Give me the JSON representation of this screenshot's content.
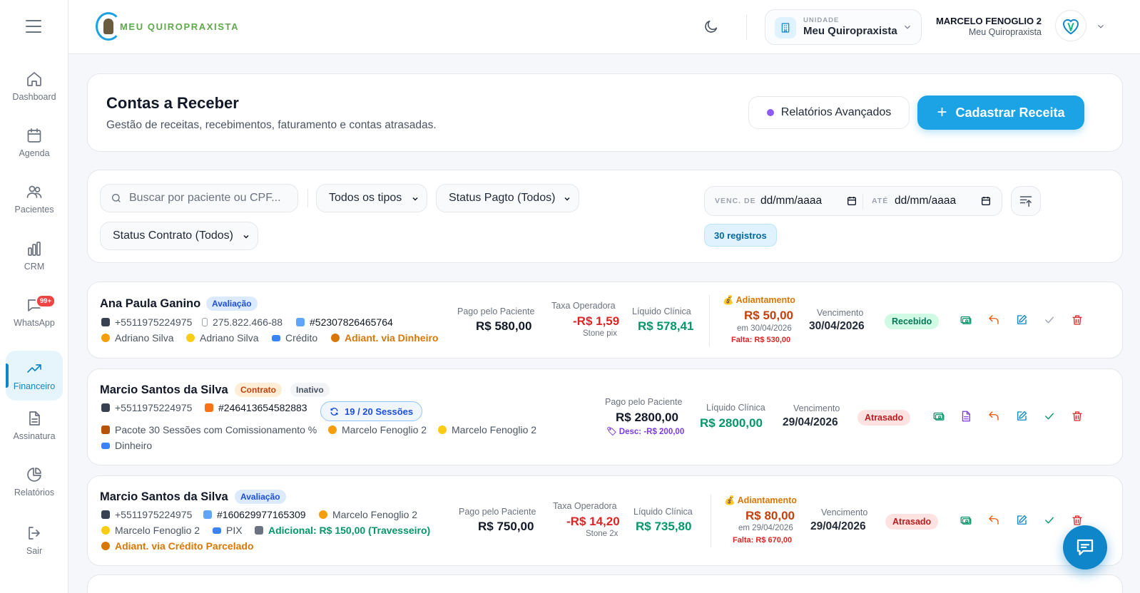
{
  "brand": {
    "name": "MEU QUIROPRAXISTA"
  },
  "sidebar": {
    "items": [
      {
        "label": "Dashboard",
        "icon": "home-icon"
      },
      {
        "label": "Agenda",
        "icon": "calendar-icon"
      },
      {
        "label": "Pacientes",
        "icon": "users-icon"
      },
      {
        "label": "CRM",
        "icon": "bar-chart-icon"
      },
      {
        "label": "WhatsApp",
        "icon": "chat-bubble-icon",
        "badge": "99+"
      },
      {
        "label": "Financeiro",
        "icon": "trending-up-icon",
        "active": true
      },
      {
        "label": "Assinatura",
        "icon": "document-icon"
      },
      {
        "label": "Relatórios",
        "icon": "pie-chart-icon"
      },
      {
        "label": "Sair",
        "icon": "logout-icon"
      }
    ]
  },
  "header": {
    "unit_label": "UNIDADE",
    "unit_name": "Meu Quiropraxista",
    "user_name": "MARCELO FENOGLIO 2",
    "user_org": "Meu Quiropraxista"
  },
  "page": {
    "title": "Contas a Receber",
    "subtitle": "Gestão de receitas, recebimentos, faturamento e contas atrasadas.",
    "reports_button": "Relatórios Avançados",
    "new_button": "Cadastrar Receita"
  },
  "filters": {
    "search_placeholder": "Buscar por paciente ou CPF...",
    "type_select": "Todos os tipos",
    "payment_status_select": "Status Pagto (Todos)",
    "contract_status_select": "Status Contrato (Todos)",
    "venc_de_label": "VENC. DE",
    "venc_de_value": "dd/mm/aaaa",
    "ate_label": "ATÉ",
    "ate_value": "dd/mm/aaaa",
    "records": "30 registros"
  },
  "rows": [
    {
      "name": "Ana Paula Ganino",
      "tag": "Avaliação",
      "phone": "+5511975224975",
      "cpf": "275.822.466-88",
      "code": "#52307826465764",
      "professional": "Adriano Silva",
      "seller": "Adriano Silva",
      "payment": "Crédito",
      "advance_via": "Adiant. via Dinheiro",
      "paid_label": "Pago pelo Paciente",
      "paid_value": "R$ 580,00",
      "fee_label": "Taxa Operadora",
      "fee_value": "-R$ 1,59",
      "fee_note": "Stone pix",
      "net_label": "Líquido Clínica",
      "net_value": "R$ 578,41",
      "advance_label": "Adiantamento",
      "advance_value": "R$ 50,00",
      "advance_date": "em 30/04/2026",
      "missing": "Falta: R$ 530,00",
      "due_label": "Vencimento",
      "due_value": "30/04/2026",
      "status": "Recebido"
    },
    {
      "name": "Marcio Santos da Silva",
      "tag": "Contrato",
      "tag2": "Inativo",
      "phone": "+5511975224975",
      "code": "#246413654582883",
      "sessions": "19 / 20 Sessões",
      "package": "Pacote 30 Sessões com Comissionamento %",
      "professional": "Marcelo Fenoglio 2",
      "seller": "Marcelo Fenoglio 2",
      "payment": "Dinheiro",
      "paid_label": "Pago pelo Paciente",
      "paid_value": "R$ 2800,00",
      "discount": "Desc: -R$ 200,00",
      "net_label": "Líquido Clínica",
      "net_value": "R$ 2800,00",
      "due_label": "Vencimento",
      "due_value": "29/04/2026",
      "status": "Atrasado"
    },
    {
      "name": "Marcio Santos da Silva",
      "tag": "Avaliação",
      "phone": "+5511975224975",
      "code": "#160629977165309",
      "professional": "Marcelo Fenoglio 2",
      "seller": "Marcelo Fenoglio 2",
      "payment": "PIX",
      "additional": "Adicional: R$ 150,00 (Travesseiro)",
      "advance_via": "Adiant. via Crédito Parcelado",
      "paid_label": "Pago pelo Paciente",
      "paid_value": "R$ 750,00",
      "fee_label": "Taxa Operadora",
      "fee_value": "-R$ 14,20",
      "fee_note": "Stone 2x",
      "net_label": "Líquido Clínica",
      "net_value": "R$ 735,80",
      "advance_label": "Adiantamento",
      "advance_value": "R$ 80,00",
      "advance_date": "em 29/04/2026",
      "missing": "Falta: R$ 670,00",
      "due_label": "Vencimento",
      "due_value": "29/04/2026",
      "status": "Atrasado"
    }
  ],
  "colors": {
    "accent": "#1ba3e6",
    "sidebar_active": "#0f86c9",
    "positive": "#059669",
    "negative": "#dc2626",
    "advance": "#d97706"
  }
}
